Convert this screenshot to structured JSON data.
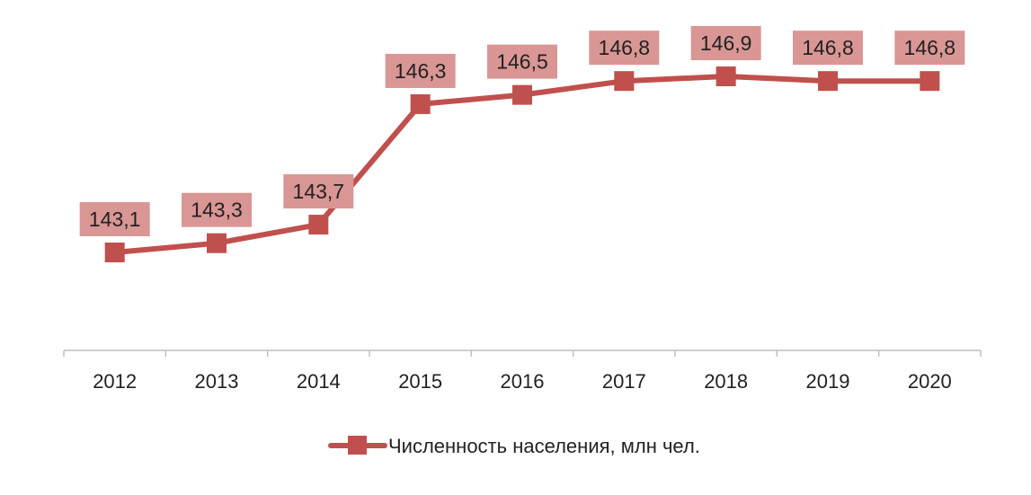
{
  "chart_data": {
    "type": "line",
    "categories": [
      "2012",
      "2013",
      "2014",
      "2015",
      "2016",
      "2017",
      "2018",
      "2019",
      "2020"
    ],
    "series": [
      {
        "name": "Численность населения, млн чел.",
        "values": [
          143.1,
          143.3,
          143.7,
          146.3,
          146.5,
          146.8,
          146.9,
          146.8,
          146.8
        ],
        "data_labels": [
          "143,1",
          "143,3",
          "143,7",
          "146,3",
          "146,5",
          "146,8",
          "146,9",
          "146,8",
          "146,8"
        ]
      }
    ],
    "grid": false,
    "legend": "bottom",
    "colors": {
      "line": "#c0504d",
      "label_fill": "#d99694",
      "axis": "#bfbfbf"
    }
  }
}
